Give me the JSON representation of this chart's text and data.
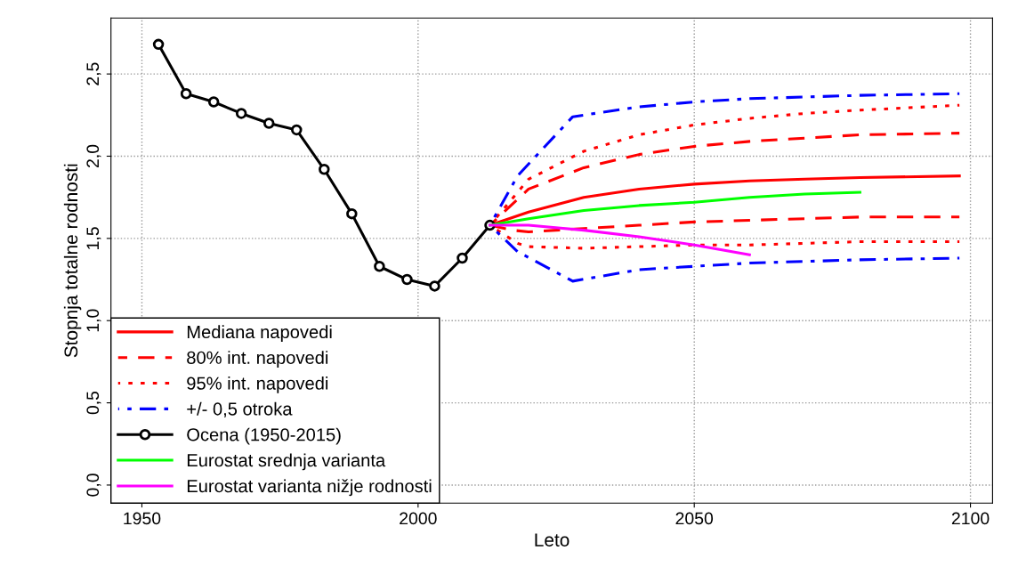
{
  "chart_data": {
    "type": "line",
    "xlabel": "Leto",
    "ylabel": "Stopnja totalne rodnosti",
    "xlim": [
      1944.4,
      2104
    ],
    "xticks": [
      1950,
      2000,
      2050,
      2100
    ],
    "ylim": [
      -0.11,
      2.84
    ],
    "yticks": [
      {
        "value": 0,
        "label": "0,0"
      },
      {
        "value": 0.5,
        "label": "0,5"
      },
      {
        "value": 1,
        "label": "1,0"
      },
      {
        "value": 1.5,
        "label": "1,5"
      },
      {
        "value": 2,
        "label": "2,0"
      },
      {
        "value": 2.5,
        "label": "2,5"
      }
    ],
    "grid": true,
    "legend": "bottom left",
    "series": [
      {
        "name": "Mediana napovedi",
        "color": "#ff0000",
        "line_style": "solid",
        "x": [
          2013,
          2020,
          2030,
          2040,
          2050,
          2060,
          2070,
          2080,
          2098
        ],
        "values": [
          1.58,
          1.66,
          1.75,
          1.8,
          1.83,
          1.85,
          1.86,
          1.87,
          1.88
        ]
      },
      {
        "name": "80% int. napovedi",
        "color": "#ff0000",
        "line_style": "dashed",
        "x": [
          2013,
          2020,
          2030,
          2040,
          2050,
          2060,
          2070,
          2080,
          2098
        ],
        "values": [
          1.58,
          1.8,
          1.93,
          2.01,
          2.06,
          2.09,
          2.11,
          2.13,
          2.14
        ]
      },
      {
        "color": "#ff0000",
        "line_style": "dashed",
        "x": [
          2013,
          2017,
          2020,
          2030,
          2040,
          2050,
          2060,
          2070,
          2080,
          2098
        ],
        "values": [
          1.58,
          1.55,
          1.54,
          1.56,
          1.58,
          1.6,
          1.61,
          1.62,
          1.63,
          1.63
        ]
      },
      {
        "name": "95% int. napovedi",
        "color": "#ff0000",
        "line_style": "dotted",
        "x": [
          2013,
          2020,
          2030,
          2040,
          2050,
          2060,
          2070,
          2080,
          2098
        ],
        "values": [
          1.58,
          1.86,
          2.03,
          2.13,
          2.19,
          2.23,
          2.26,
          2.28,
          2.31
        ]
      },
      {
        "color": "#ff0000",
        "line_style": "dotted",
        "x": [
          2013,
          2018,
          2020,
          2030,
          2040,
          2050,
          2060,
          2070,
          2080,
          2098
        ],
        "values": [
          1.58,
          1.47,
          1.45,
          1.44,
          1.45,
          1.46,
          1.46,
          1.47,
          1.48,
          1.48
        ]
      },
      {
        "name": "+/- 0,5 otroka",
        "color": "#0000ff",
        "line_style": "dashdot",
        "x": [
          2013,
          2018,
          2028,
          2040,
          2050,
          2060,
          2070,
          2080,
          2098
        ],
        "values": [
          1.58,
          1.88,
          2.24,
          2.3,
          2.33,
          2.35,
          2.36,
          2.37,
          2.38
        ]
      },
      {
        "color": "#0000ff",
        "line_style": "dashdot",
        "x": [
          2013,
          2018,
          2028,
          2040,
          2050,
          2060,
          2070,
          2080,
          2098
        ],
        "values": [
          1.58,
          1.42,
          1.24,
          1.31,
          1.33,
          1.35,
          1.36,
          1.37,
          1.38
        ]
      },
      {
        "name": "Ocena (1950-2015)",
        "color": "#000000",
        "line_style": "solid",
        "marker": "circle",
        "x": [
          1953,
          1958,
          1963,
          1968,
          1973,
          1978,
          1983,
          1988,
          1993,
          1998,
          2003,
          2008,
          2013
        ],
        "values": [
          2.68,
          2.38,
          2.33,
          2.26,
          2.2,
          2.16,
          1.92,
          1.65,
          1.33,
          1.25,
          1.21,
          1.38,
          1.58
        ]
      },
      {
        "name": "Eurostat srednja varianta",
        "color": "#00ff00",
        "line_style": "solid",
        "x": [
          2013,
          2020,
          2030,
          2040,
          2050,
          2060,
          2070,
          2080
        ],
        "values": [
          1.58,
          1.62,
          1.67,
          1.7,
          1.72,
          1.75,
          1.77,
          1.78
        ]
      },
      {
        "name": "Eurostat varianta nižje rodnosti",
        "color": "#ff00ff",
        "line_style": "solid",
        "x": [
          2013,
          2020,
          2030,
          2040,
          2050,
          2060
        ],
        "values": [
          1.58,
          1.58,
          1.55,
          1.51,
          1.46,
          1.4
        ]
      }
    ]
  }
}
